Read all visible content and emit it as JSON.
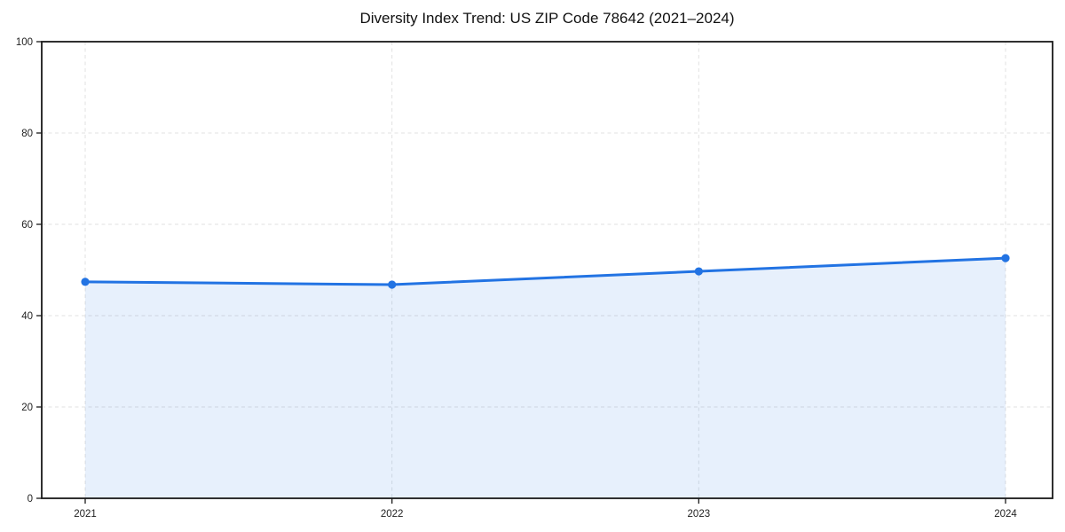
{
  "chart_data": {
    "type": "area",
    "title": "Diversity Index Trend: US ZIP Code 78642 (2021–2024)",
    "categories": [
      "2021",
      "2022",
      "2023",
      "2024"
    ],
    "series": [
      {
        "name": "Diversity Index",
        "values": [
          47.4,
          46.8,
          49.7,
          52.6
        ]
      }
    ],
    "xlabel": "",
    "ylabel": "",
    "ylim": [
      0,
      100
    ],
    "yticks": [
      0,
      20,
      40,
      60,
      80,
      100
    ],
    "grid": "dashed-both-axes",
    "legend": "none",
    "marker": "circle",
    "colors": {
      "line": "#2273e3",
      "marker": "#2273e3",
      "fill": "#2273e3",
      "fill_opacity": 0.11,
      "gridline": "#e1e1e1",
      "axis": "#1a1a1a",
      "tick_label": "#222222",
      "title": "#111111",
      "background": "#ffffff"
    }
  }
}
